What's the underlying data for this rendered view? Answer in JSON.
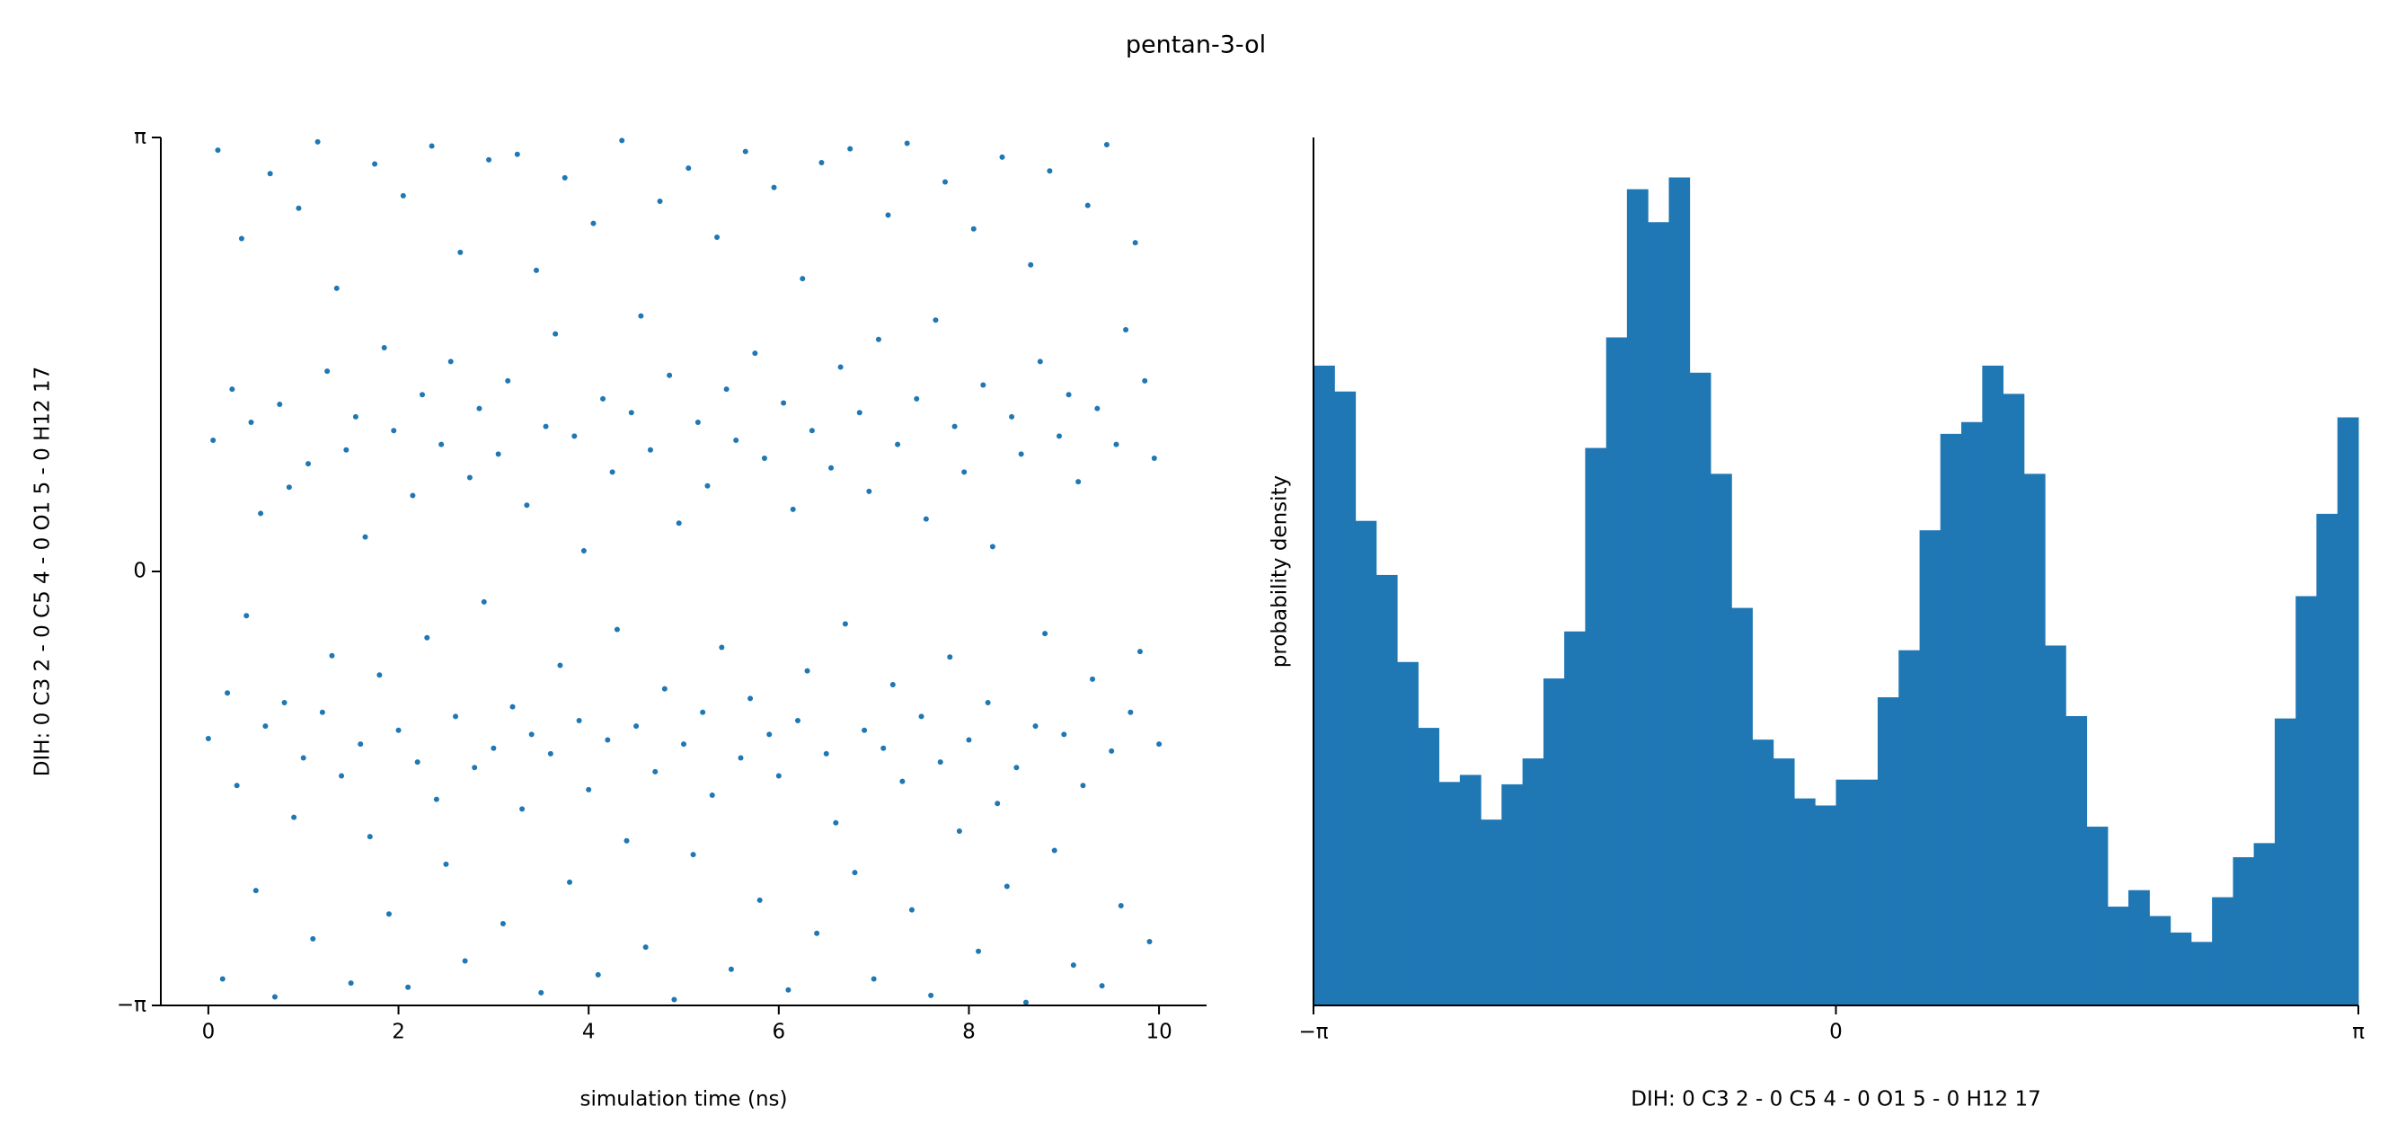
{
  "title": "pentan-3-ol",
  "chart_data": [
    {
      "type": "scatter",
      "xlabel": "simulation time (ns)",
      "ylabel": "DIH:  0 C3 2 -  0 C5 4 -  0 O1 5 -  0 H12 17",
      "color": "#1f77b4",
      "xlim": [
        -0.5,
        10.5
      ],
      "ylim": [
        -3.142,
        3.142
      ],
      "xticks": [
        0,
        2,
        4,
        6,
        8,
        10
      ],
      "yticks": [
        {
          "value": -3.142,
          "label": "−π"
        },
        0,
        {
          "value": 3.142,
          "label": "π"
        }
      ],
      "x": [
        0,
        0.05,
        0.1,
        0.15,
        0.2,
        0.25,
        0.3,
        0.35,
        0.4,
        0.45,
        0.5,
        0.55,
        0.6,
        0.65,
        0.7,
        0.75,
        0.8,
        0.85,
        0.9,
        0.95,
        1,
        1.05,
        1.1,
        1.15,
        1.2,
        1.25,
        1.3,
        1.35,
        1.4,
        1.45,
        1.5,
        1.55,
        1.6,
        1.65,
        1.7,
        1.75,
        1.8,
        1.85,
        1.9,
        1.95,
        2,
        2.05,
        2.1,
        2.15,
        2.2,
        2.25,
        2.3,
        2.35,
        2.4,
        2.45,
        2.5,
        2.55,
        2.6,
        2.65,
        2.7,
        2.75,
        2.8,
        2.85,
        2.9,
        2.95,
        3,
        3.05,
        3.1,
        3.15,
        3.2,
        3.25,
        3.3,
        3.35,
        3.4,
        3.45,
        3.5,
        3.55,
        3.6,
        3.65,
        3.7,
        3.75,
        3.8,
        3.85,
        3.9,
        3.95,
        4,
        4.05,
        4.1,
        4.15,
        4.2,
        4.25,
        4.3,
        4.35,
        4.4,
        4.45,
        4.5,
        4.55,
        4.6,
        4.65,
        4.7,
        4.75,
        4.8,
        4.85,
        4.9,
        4.95,
        5,
        5.05,
        5.1,
        5.15,
        5.2,
        5.25,
        5.3,
        5.35,
        5.4,
        5.45,
        5.5,
        5.55,
        5.6,
        5.65,
        5.7,
        5.75,
        5.8,
        5.85,
        5.9,
        5.95,
        6,
        6.05,
        6.1,
        6.15,
        6.2,
        6.25,
        6.3,
        6.35,
        6.4,
        6.45,
        6.5,
        6.55,
        6.6,
        6.65,
        6.7,
        6.75,
        6.8,
        6.85,
        6.9,
        6.95,
        7,
        7.05,
        7.1,
        7.15,
        7.2,
        7.25,
        7.3,
        7.35,
        7.4,
        7.45,
        7.5,
        7.55,
        7.6,
        7.65,
        7.7,
        7.75,
        7.8,
        7.85,
        7.9,
        7.95,
        8,
        8.05,
        8.1,
        8.15,
        8.2,
        8.25,
        8.3,
        8.35,
        8.4,
        8.45,
        8.5,
        8.55,
        8.6,
        8.65,
        8.7,
        8.75,
        8.8,
        8.85,
        8.9,
        8.95,
        9,
        9.05,
        9.1,
        9.15,
        9.2,
        9.25,
        9.3,
        9.35,
        9.4,
        9.45,
        9.5,
        9.55,
        9.6,
        9.65,
        9.7,
        9.75,
        9.8,
        9.85,
        9.9,
        9.95,
        10
      ],
      "y": [
        -1.21,
        0.95,
        3.05,
        -2.95,
        -0.88,
        1.32,
        -1.55,
        2.41,
        -0.32,
        1.08,
        -2.31,
        0.42,
        -1.12,
        2.88,
        -3.08,
        1.21,
        -0.95,
        0.61,
        -1.78,
        2.63,
        -1.35,
        0.78,
        -2.66,
        3.11,
        -1.02,
        1.45,
        -0.61,
        2.05,
        -1.48,
        0.88,
        -2.98,
        1.12,
        -1.25,
        0.25,
        -1.92,
        2.95,
        -0.75,
        1.62,
        -2.48,
        1.02,
        -1.15,
        2.72,
        -3.01,
        0.55,
        -1.38,
        1.28,
        -0.48,
        3.08,
        -1.65,
        0.92,
        -2.12,
        1.52,
        -1.05,
        2.31,
        -2.82,
        0.68,
        -1.42,
        1.18,
        -0.22,
        2.98,
        -1.28,
        0.85,
        -2.55,
        1.38,
        -0.98,
        3.02,
        -1.72,
        0.48,
        -1.18,
        2.18,
        -3.05,
        1.05,
        -1.32,
        1.72,
        -0.68,
        2.85,
        -2.25,
        0.98,
        -1.08,
        0.15,
        -1.58,
        2.52,
        -2.92,
        1.25,
        -1.22,
        0.72,
        -0.42,
        3.12,
        -1.95,
        1.15,
        -1.12,
        1.85,
        -2.72,
        0.88,
        -1.45,
        2.68,
        -0.85,
        1.42,
        -3.1,
        0.35,
        -1.25,
        2.92,
        -2.05,
        1.08,
        -1.02,
        0.62,
        -1.62,
        2.42,
        -0.55,
        1.32,
        -2.88,
        0.95,
        -1.35,
        3.04,
        -0.92,
        1.58,
        -2.38,
        0.82,
        -1.18,
        2.78,
        -1.48,
        1.22,
        -3.03,
        0.45,
        -1.08,
        2.12,
        -0.72,
        1.02,
        -2.62,
        2.96,
        -1.32,
        0.75,
        -1.82,
        1.48,
        -0.38,
        3.06,
        -2.18,
        1.15,
        -1.15,
        0.58,
        -2.95,
        1.68,
        -1.28,
        2.58,
        -0.82,
        0.92,
        -1.52,
        3.1,
        -2.45,
        1.25,
        -1.05,
        0.38,
        -3.07,
        1.82,
        -1.38,
        2.82,
        -0.62,
        1.05,
        -1.88,
        0.72,
        -1.22,
        2.48,
        -2.75,
        1.35,
        -0.95,
        0.18,
        -1.68,
        3.0,
        -2.28,
        1.12,
        -1.42,
        0.85,
        -3.12,
        2.22,
        -1.12,
        1.52,
        -0.45,
        2.9,
        -2.02,
        0.98,
        -1.18,
        1.28,
        -2.85,
        0.65,
        -1.55,
        2.65,
        -0.78,
        1.18,
        -3.0,
        3.09,
        -1.3,
        0.92,
        -2.42,
        1.75,
        -1.02,
        2.38,
        -0.58,
        1.38,
        -2.68,
        0.82,
        -1.25
      ]
    },
    {
      "type": "histogram",
      "xlabel": "DIH:  0 C3 2 -  0 C5 4 -  0 O1 5 -  0 H12 17",
      "ylabel": "probability density",
      "color": "#1f77b4",
      "xlim": [
        -3.142,
        3.142
      ],
      "ylim": [
        0,
        0.369
      ],
      "xticks": [
        {
          "value": -3.142,
          "label": "−π"
        },
        0,
        {
          "value": 3.142,
          "label": "π"
        }
      ],
      "bins": [
        -3.142,
        -3.016,
        -2.89,
        -2.765,
        -2.639,
        -2.513,
        -2.388,
        -2.262,
        -2.136,
        -2.011,
        -1.885,
        -1.759,
        -1.634,
        -1.508,
        -1.382,
        -1.257,
        -1.131,
        -1.005,
        -0.88,
        -0.754,
        -0.628,
        -0.503,
        -0.377,
        -0.251,
        -0.126,
        0,
        0.126,
        0.251,
        0.377,
        0.503,
        0.628,
        0.754,
        0.88,
        1.005,
        1.131,
        1.257,
        1.382,
        1.508,
        1.634,
        1.759,
        1.885,
        2.011,
        2.136,
        2.262,
        2.388,
        2.513,
        2.639,
        2.765,
        2.89,
        3.016,
        3.142
      ],
      "values": [
        0.272,
        0.261,
        0.206,
        0.183,
        0.146,
        0.118,
        0.095,
        0.098,
        0.079,
        0.094,
        0.105,
        0.139,
        0.159,
        0.237,
        0.284,
        0.347,
        0.333,
        0.352,
        0.269,
        0.226,
        0.169,
        0.113,
        0.105,
        0.088,
        0.085,
        0.096,
        0.096,
        0.131,
        0.151,
        0.202,
        0.243,
        0.248,
        0.272,
        0.26,
        0.226,
        0.153,
        0.123,
        0.076,
        0.042,
        0.049,
        0.038,
        0.031,
        0.027,
        0.046,
        0.063,
        0.069,
        0.122,
        0.174,
        0.209,
        0.25
      ]
    }
  ]
}
